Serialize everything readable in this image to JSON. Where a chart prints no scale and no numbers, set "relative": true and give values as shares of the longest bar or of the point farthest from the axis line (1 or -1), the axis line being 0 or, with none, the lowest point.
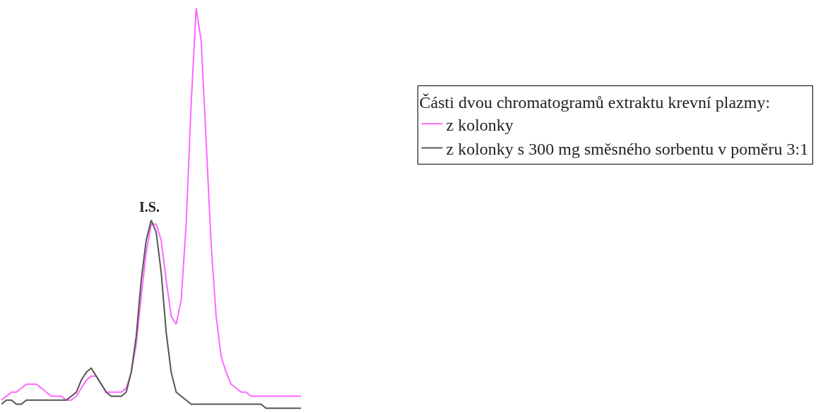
{
  "chart_data": {
    "type": "line",
    "relative": true,
    "legend_title": "Části dvou chromatogramů extraktu krevní plazmy:",
    "legend": "top right",
    "marker": "none",
    "line_style": "solid",
    "categories": [
      null,
      null,
      null,
      null,
      null,
      null,
      null,
      null,
      null,
      null,
      null,
      null,
      null,
      null,
      null,
      null,
      null,
      null,
      null,
      null,
      null,
      null,
      null,
      null,
      null,
      null,
      null,
      null,
      null,
      null,
      null,
      null,
      null,
      null,
      null,
      null,
      null,
      null,
      null,
      null,
      null,
      null,
      null,
      null,
      null,
      null,
      null,
      null,
      null,
      null,
      null,
      null,
      null,
      null,
      null,
      null,
      null,
      null,
      null,
      null,
      null
    ],
    "series": [
      {
        "name": "z kolonky",
        "color": "#ff66ff",
        "values": [
          0.02,
          0.03,
          0.04,
          0.04,
          0.05,
          0.06,
          0.06,
          0.06,
          0.05,
          0.04,
          0.03,
          0.03,
          0.03,
          0.02,
          0.02,
          0.03,
          0.05,
          0.07,
          0.08,
          0.08,
          0.06,
          0.04,
          0.04,
          0.04,
          0.04,
          0.05,
          0.09,
          0.16,
          0.28,
          0.39,
          0.46,
          0.46,
          0.42,
          0.32,
          0.23,
          0.21,
          0.27,
          0.46,
          0.76,
          1,
          0.92,
          0.67,
          0.41,
          0.23,
          0.13,
          0.09,
          0.06,
          0.05,
          0.04,
          0.04,
          0.03,
          0.03,
          0.03,
          0.03,
          0.03,
          0.03,
          0.03,
          0.03,
          0.03,
          0.03,
          0.03
        ]
      },
      {
        "name": "z kolonky s 300 mg směsného sorbentu v poměru 3:1",
        "color": "#555555",
        "values": [
          0.01,
          0.02,
          0.02,
          0.01,
          0.01,
          0.02,
          0.02,
          0.02,
          0.02,
          0.02,
          0.02,
          0.02,
          0.02,
          0.02,
          0.03,
          0.04,
          0.07,
          0.09,
          0.1,
          0.08,
          0.06,
          0.04,
          0.03,
          0.03,
          0.03,
          0.04,
          0.09,
          0.18,
          0.32,
          0.42,
          0.47,
          0.44,
          0.34,
          0.19,
          0.09,
          0.04,
          0.03,
          0.02,
          0.01,
          0.01,
          0.01,
          0.01,
          0.01,
          0.01,
          0.01,
          0.01,
          0.01,
          0.01,
          0.01,
          0.01,
          0.01,
          0.01,
          0.01,
          0,
          0,
          0,
          0,
          0,
          0,
          0,
          0
        ]
      }
    ],
    "annotations": [
      {
        "text": "I.S.",
        "y": 0.47
      }
    ]
  }
}
